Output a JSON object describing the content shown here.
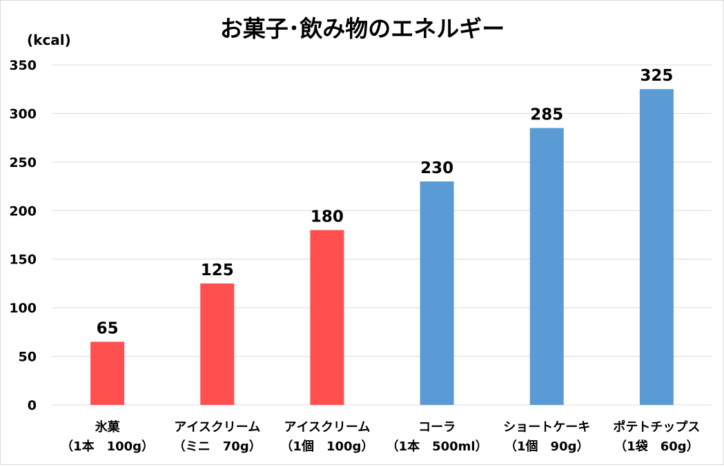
{
  "chart_data": {
    "type": "bar",
    "title": "お菓子･飲み物のエネルギー",
    "unit_label": "(kcal)",
    "ylim": [
      0,
      350
    ],
    "yticks": [
      0,
      50,
      100,
      150,
      200,
      250,
      300,
      350
    ],
    "grid": true,
    "categories": [
      [
        "氷菓",
        "（1本　100g）"
      ],
      [
        "アイスクリーム",
        "（ミニ　70g）"
      ],
      [
        "アイスクリーム",
        "（1個　100g）"
      ],
      [
        "コーラ",
        "（1本　500ml）"
      ],
      [
        "ショートケーキ",
        "（1個　90g）"
      ],
      [
        "ポテトチップス",
        "（1袋　60g）"
      ]
    ],
    "values": [
      65,
      125,
      180,
      230,
      285,
      325
    ],
    "data_labels": [
      "65",
      "125",
      "180",
      "230",
      "285",
      "325"
    ],
    "bar_colors": [
      "#ff5050",
      "#ff5050",
      "#ff5050",
      "#5b9bd5",
      "#5b9bd5",
      "#5b9bd5"
    ]
  }
}
